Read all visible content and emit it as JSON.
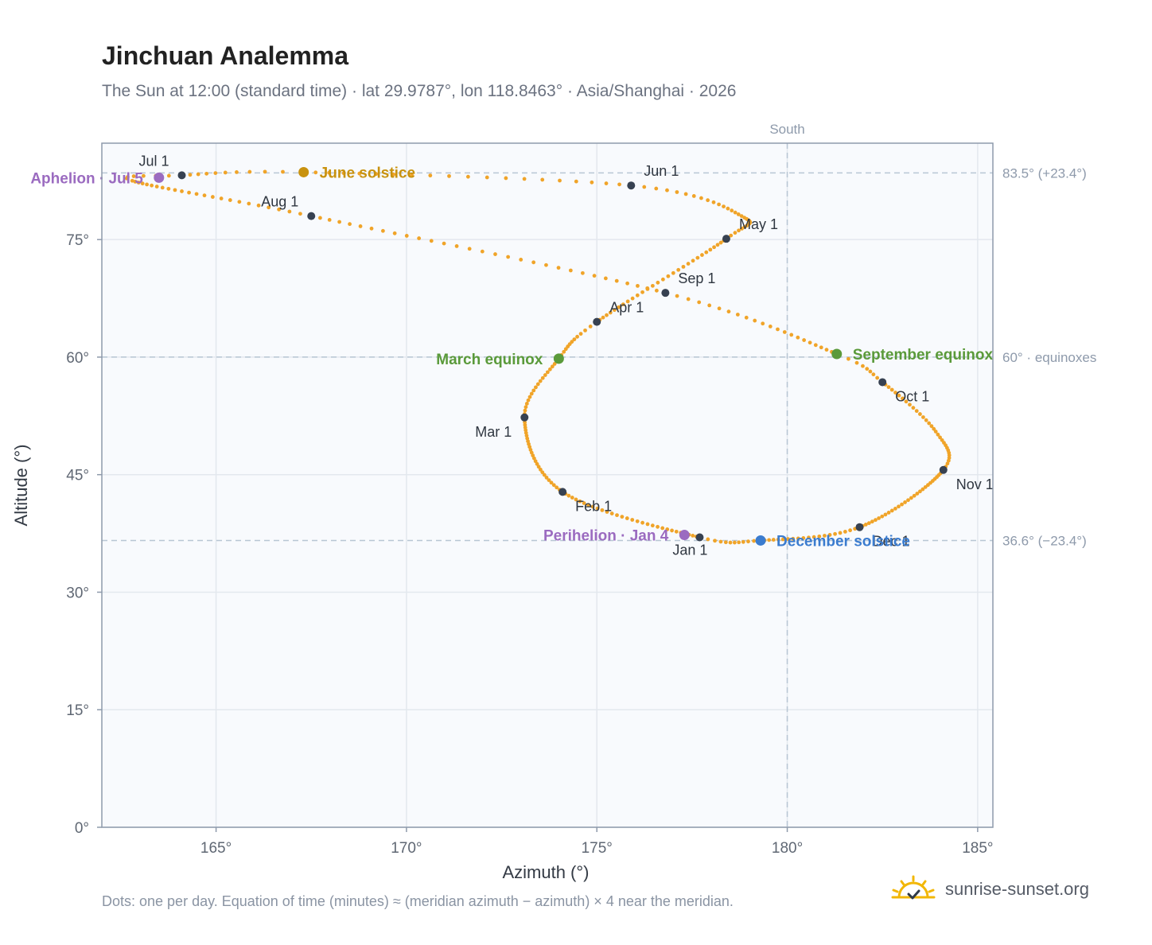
{
  "header": {
    "title": "Jinchuan Analemma",
    "subtitle": "The Sun at 12:00 (standard time) · lat 29.9787°, lon 118.8463° · Asia/Shanghai · 2026"
  },
  "footer": {
    "note": "Dots: one per day. Equation of time (minutes) ≈ (meridian azimuth − azimuth) × 4 near the meridian.",
    "brand": "sunrise-sunset.org",
    "brand_icon": "sun-logo-icon"
  },
  "colors": {
    "path": "#f0a429",
    "month": "#374151",
    "solstice_june": "#c8920f",
    "solstice_december": "#3b7ccf",
    "equinox": "#5a9a3a",
    "apsis": "#9b6bc0",
    "plot_bg": "#f8fafd",
    "grid": "#e3e8ee",
    "ref_line": "#b8c6d4",
    "axis": "#8e9aab"
  },
  "chart_data": {
    "type": "scatter",
    "xlabel": "Azimuth (°)",
    "ylabel": "Altitude (°)",
    "xlim": [
      162,
      185.4
    ],
    "ylim": [
      0,
      87.3
    ],
    "x_ticks": [
      165,
      170,
      175,
      180,
      185
    ],
    "x_tick_labels": [
      "165°",
      "170°",
      "175°",
      "180°",
      "185°"
    ],
    "y_ticks": [
      0,
      15,
      30,
      45,
      60,
      75
    ],
    "y_tick_labels": [
      "0°",
      "15°",
      "30°",
      "45°",
      "60°",
      "75°"
    ],
    "grid": true,
    "reference_lines": {
      "vertical": [
        {
          "x": 180,
          "label": "South"
        }
      ],
      "horizontal": [
        {
          "y": 83.5,
          "label": "83.5° (+23.4°)"
        },
        {
          "y": 60,
          "label": "60° · equinoxes"
        },
        {
          "y": 36.6,
          "label": "36.6° (−23.4°)"
        }
      ]
    },
    "path_knots": [
      {
        "day": 0,
        "az": 177.7,
        "alt": 37.0
      },
      {
        "day": 31,
        "az": 174.1,
        "alt": 42.8
      },
      {
        "day": 59,
        "az": 173.1,
        "alt": 52.3
      },
      {
        "day": 78,
        "az": 174.0,
        "alt": 59.8
      },
      {
        "day": 90,
        "az": 175.0,
        "alt": 64.5
      },
      {
        "day": 120,
        "az": 178.4,
        "alt": 75.1
      },
      {
        "day": 135,
        "az": 178.8,
        "alt": 78.0
      },
      {
        "day": 151,
        "az": 175.9,
        "alt": 81.9
      },
      {
        "day": 171,
        "az": 167.3,
        "alt": 83.6
      },
      {
        "day": 181,
        "az": 164.1,
        "alt": 83.2
      },
      {
        "day": 188,
        "az": 162.8,
        "alt": 82.5
      },
      {
        "day": 212,
        "az": 167.5,
        "alt": 78.0
      },
      {
        "day": 243,
        "az": 176.8,
        "alt": 68.2
      },
      {
        "day": 265,
        "az": 181.3,
        "alt": 60.4
      },
      {
        "day": 273,
        "az": 182.5,
        "alt": 56.8
      },
      {
        "day": 290,
        "az": 183.9,
        "alt": 50.5
      },
      {
        "day": 304,
        "az": 184.1,
        "alt": 45.6
      },
      {
        "day": 334,
        "az": 181.9,
        "alt": 38.3
      },
      {
        "day": 354,
        "az": 179.3,
        "alt": 36.6
      },
      {
        "day": 365,
        "az": 177.7,
        "alt": 37.0
      }
    ],
    "month_markers": [
      {
        "label": "Jan 1",
        "az": 177.7,
        "alt": 37.0,
        "pos": "below"
      },
      {
        "label": "Feb 1",
        "az": 174.1,
        "alt": 42.8,
        "pos": "below-right"
      },
      {
        "label": "Mar 1",
        "az": 173.1,
        "alt": 52.3,
        "pos": "below-left"
      },
      {
        "label": "Apr 1",
        "az": 175.0,
        "alt": 64.5,
        "pos": "above-right"
      },
      {
        "label": "May 1",
        "az": 178.4,
        "alt": 75.1,
        "pos": "above-right"
      },
      {
        "label": "Jun 1",
        "az": 175.9,
        "alt": 81.9,
        "pos": "above-right"
      },
      {
        "label": "Jul 1",
        "az": 164.1,
        "alt": 83.2,
        "pos": "above-left"
      },
      {
        "label": "Aug 1",
        "az": 167.5,
        "alt": 78.0,
        "pos": "above-left"
      },
      {
        "label": "Sep 1",
        "az": 176.8,
        "alt": 68.2,
        "pos": "above-right"
      },
      {
        "label": "Oct 1",
        "az": 182.5,
        "alt": 56.8,
        "pos": "below-right"
      },
      {
        "label": "Nov 1",
        "az": 184.1,
        "alt": 45.6,
        "pos": "below-right"
      },
      {
        "label": "Dec 1",
        "az": 181.9,
        "alt": 38.3,
        "pos": "below-right"
      }
    ],
    "events": [
      {
        "label": "June solstice",
        "az": 167.3,
        "alt": 83.6,
        "color": "#c8920f",
        "pos": "right"
      },
      {
        "label": "Aphelion · Jul 5",
        "az": 163.5,
        "alt": 82.9,
        "color": "#9b6bc0",
        "pos": "left"
      },
      {
        "label": "March equinox",
        "az": 174.0,
        "alt": 59.8,
        "color": "#5a9a3a",
        "pos": "left"
      },
      {
        "label": "September equinox",
        "az": 181.3,
        "alt": 60.4,
        "color": "#5a9a3a",
        "pos": "right"
      },
      {
        "label": "Perihelion · Jan 4",
        "az": 177.3,
        "alt": 37.3,
        "color": "#9b6bc0",
        "pos": "left"
      },
      {
        "label": "December solstice",
        "az": 179.3,
        "alt": 36.6,
        "color": "#3b7ccf",
        "pos": "right"
      }
    ]
  }
}
